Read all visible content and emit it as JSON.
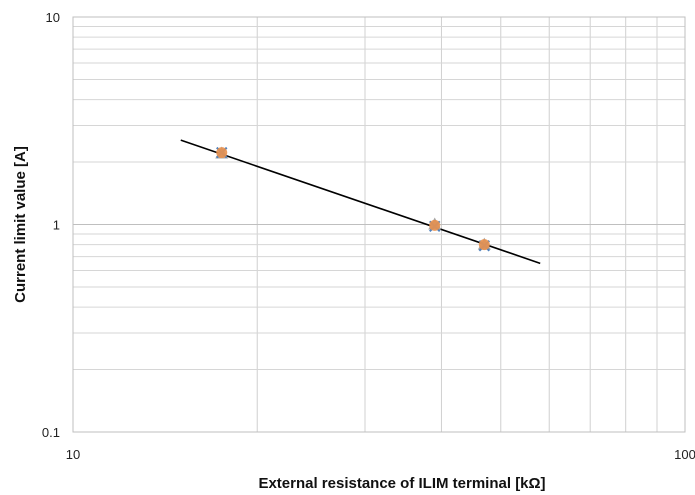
{
  "chart_data": {
    "type": "scatter",
    "title": "",
    "xlabel": "External resistance of ILIM terminal [kΩ]",
    "ylabel": "Current limit value [A]",
    "xscale": "log",
    "yscale": "log",
    "xlim": [
      10,
      100
    ],
    "ylim": [
      0.1,
      10
    ],
    "grid": true,
    "legend": "none",
    "x_ticks": [
      "10",
      "100"
    ],
    "y_ticks": [
      "0.1",
      "1",
      "10"
    ],
    "series": [
      {
        "marker": "triangle",
        "color": "#a5a5a5",
        "points": [
          [
            17.5,
            2.2
          ],
          [
            39.0,
            1.0
          ],
          [
            47.0,
            0.8
          ]
        ]
      },
      {
        "marker": "x",
        "color": "#4f81bd",
        "points": [
          [
            17.5,
            2.22
          ],
          [
            39.0,
            0.98
          ],
          [
            47.0,
            0.79
          ]
        ]
      },
      {
        "marker": "circle",
        "color": "#e8914f",
        "points": [
          [
            17.5,
            2.22
          ],
          [
            39.0,
            0.99
          ],
          [
            47.0,
            0.8
          ]
        ]
      }
    ],
    "trendline": {
      "color": "#000000",
      "points": [
        [
          15.0,
          2.55
        ],
        [
          58.0,
          0.65
        ]
      ]
    }
  }
}
